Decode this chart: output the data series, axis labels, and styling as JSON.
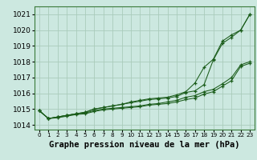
{
  "title": "Graphe pression niveau de la mer (hPa)",
  "background_color": "#cce8e0",
  "grid_color": "#aaccbb",
  "line_color": "#1a5c1a",
  "x_values": [
    0,
    1,
    2,
    3,
    4,
    5,
    6,
    7,
    8,
    9,
    10,
    11,
    12,
    13,
    14,
    15,
    16,
    17,
    18,
    19,
    20,
    21,
    22,
    23
  ],
  "series1": [
    1014.9,
    1014.4,
    1014.5,
    1014.6,
    1014.7,
    1014.8,
    1015.0,
    1015.1,
    1015.2,
    1015.3,
    1015.4,
    1015.5,
    1015.6,
    1015.65,
    1015.7,
    1015.8,
    1016.05,
    1016.15,
    1016.55,
    1018.1,
    1019.15,
    1019.55,
    1020.0,
    1021.0
  ],
  "series2": [
    1014.9,
    1014.4,
    1014.5,
    1014.6,
    1014.7,
    1014.8,
    1015.0,
    1015.1,
    1015.2,
    1015.3,
    1015.45,
    1015.55,
    1015.65,
    1015.7,
    1015.75,
    1015.9,
    1016.1,
    1016.65,
    1017.65,
    1018.15,
    1019.3,
    1019.7,
    1020.0,
    1021.0
  ],
  "series3": [
    1014.9,
    1014.4,
    1014.5,
    1014.6,
    1014.7,
    1014.75,
    1014.9,
    1015.0,
    1015.05,
    1015.1,
    1015.15,
    1015.2,
    1015.3,
    1015.35,
    1015.45,
    1015.55,
    1015.75,
    1015.85,
    1016.1,
    1016.25,
    1016.6,
    1017.0,
    1017.8,
    1018.0
  ],
  "series4": [
    1014.9,
    1014.4,
    1014.45,
    1014.55,
    1014.65,
    1014.7,
    1014.85,
    1014.95,
    1015.0,
    1015.05,
    1015.1,
    1015.15,
    1015.25,
    1015.3,
    1015.35,
    1015.45,
    1015.6,
    1015.7,
    1015.95,
    1016.1,
    1016.45,
    1016.8,
    1017.7,
    1017.9
  ],
  "ylim_min": 1013.7,
  "ylim_max": 1021.5,
  "yticks": [
    1014,
    1015,
    1016,
    1017,
    1018,
    1019,
    1020,
    1021
  ],
  "xlim_min": -0.5,
  "xlim_max": 23.5,
  "xlabel_fontsize": 7.5,
  "tick_fontsize": 6.5,
  "xtick_fontsize": 5.2
}
